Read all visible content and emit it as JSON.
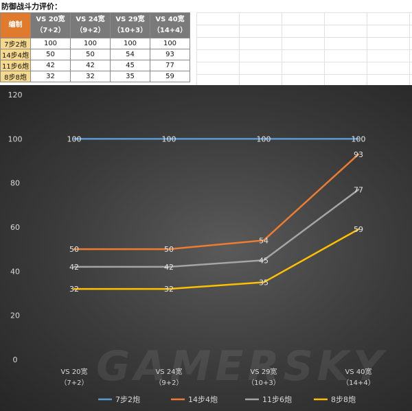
{
  "sheet": {
    "title": "防御战斗力评价：",
    "corner": "编制",
    "headers": [
      {
        "line1": "VS 20宽",
        "line2": "（7+2）"
      },
      {
        "line1": "VS 24宽",
        "line2": "（9+2）"
      },
      {
        "line1": "VS 29宽",
        "line2": "（10+3）"
      },
      {
        "line1": "VS 40宽",
        "line2": "（14+4）"
      }
    ],
    "rows": [
      {
        "label": "7步2炮",
        "values": [
          "100",
          "100",
          "100",
          "100"
        ]
      },
      {
        "label": "14步4炮",
        "values": [
          "50",
          "50",
          "54",
          "93"
        ]
      },
      {
        "label": "11步6炮",
        "values": [
          "42",
          "42",
          "45",
          "77"
        ]
      },
      {
        "label": "8步8炮",
        "values": [
          "32",
          "32",
          "35",
          "59"
        ]
      }
    ]
  },
  "watermark": "GAMERSKY",
  "chart_data": {
    "type": "line",
    "title": "",
    "xlabel": "",
    "ylabel": "",
    "ylim": [
      0,
      120
    ],
    "y_ticks": [
      0,
      20,
      40,
      60,
      80,
      100,
      120
    ],
    "grid": false,
    "legend_position": "bottom",
    "categories": [
      {
        "line1": "VS 20宽",
        "line2": "（7+2）"
      },
      {
        "line1": "VS 24宽",
        "line2": "（9+2）"
      },
      {
        "line1": "VS 29宽",
        "line2": "（10+3）"
      },
      {
        "line1": "VS 40宽",
        "line2": "（14+4）"
      }
    ],
    "series": [
      {
        "name": "7步2炮",
        "values": [
          100,
          100,
          100,
          100
        ],
        "color": "#5b9bd5"
      },
      {
        "name": "14步4炮",
        "values": [
          50,
          50,
          54,
          93
        ],
        "color": "#ed7d31"
      },
      {
        "name": "11步6炮",
        "values": [
          42,
          42,
          45,
          77
        ],
        "color": "#a5a5a5"
      },
      {
        "name": "8步8炮",
        "values": [
          32,
          32,
          35,
          59
        ],
        "color": "#ffc000"
      }
    ]
  }
}
